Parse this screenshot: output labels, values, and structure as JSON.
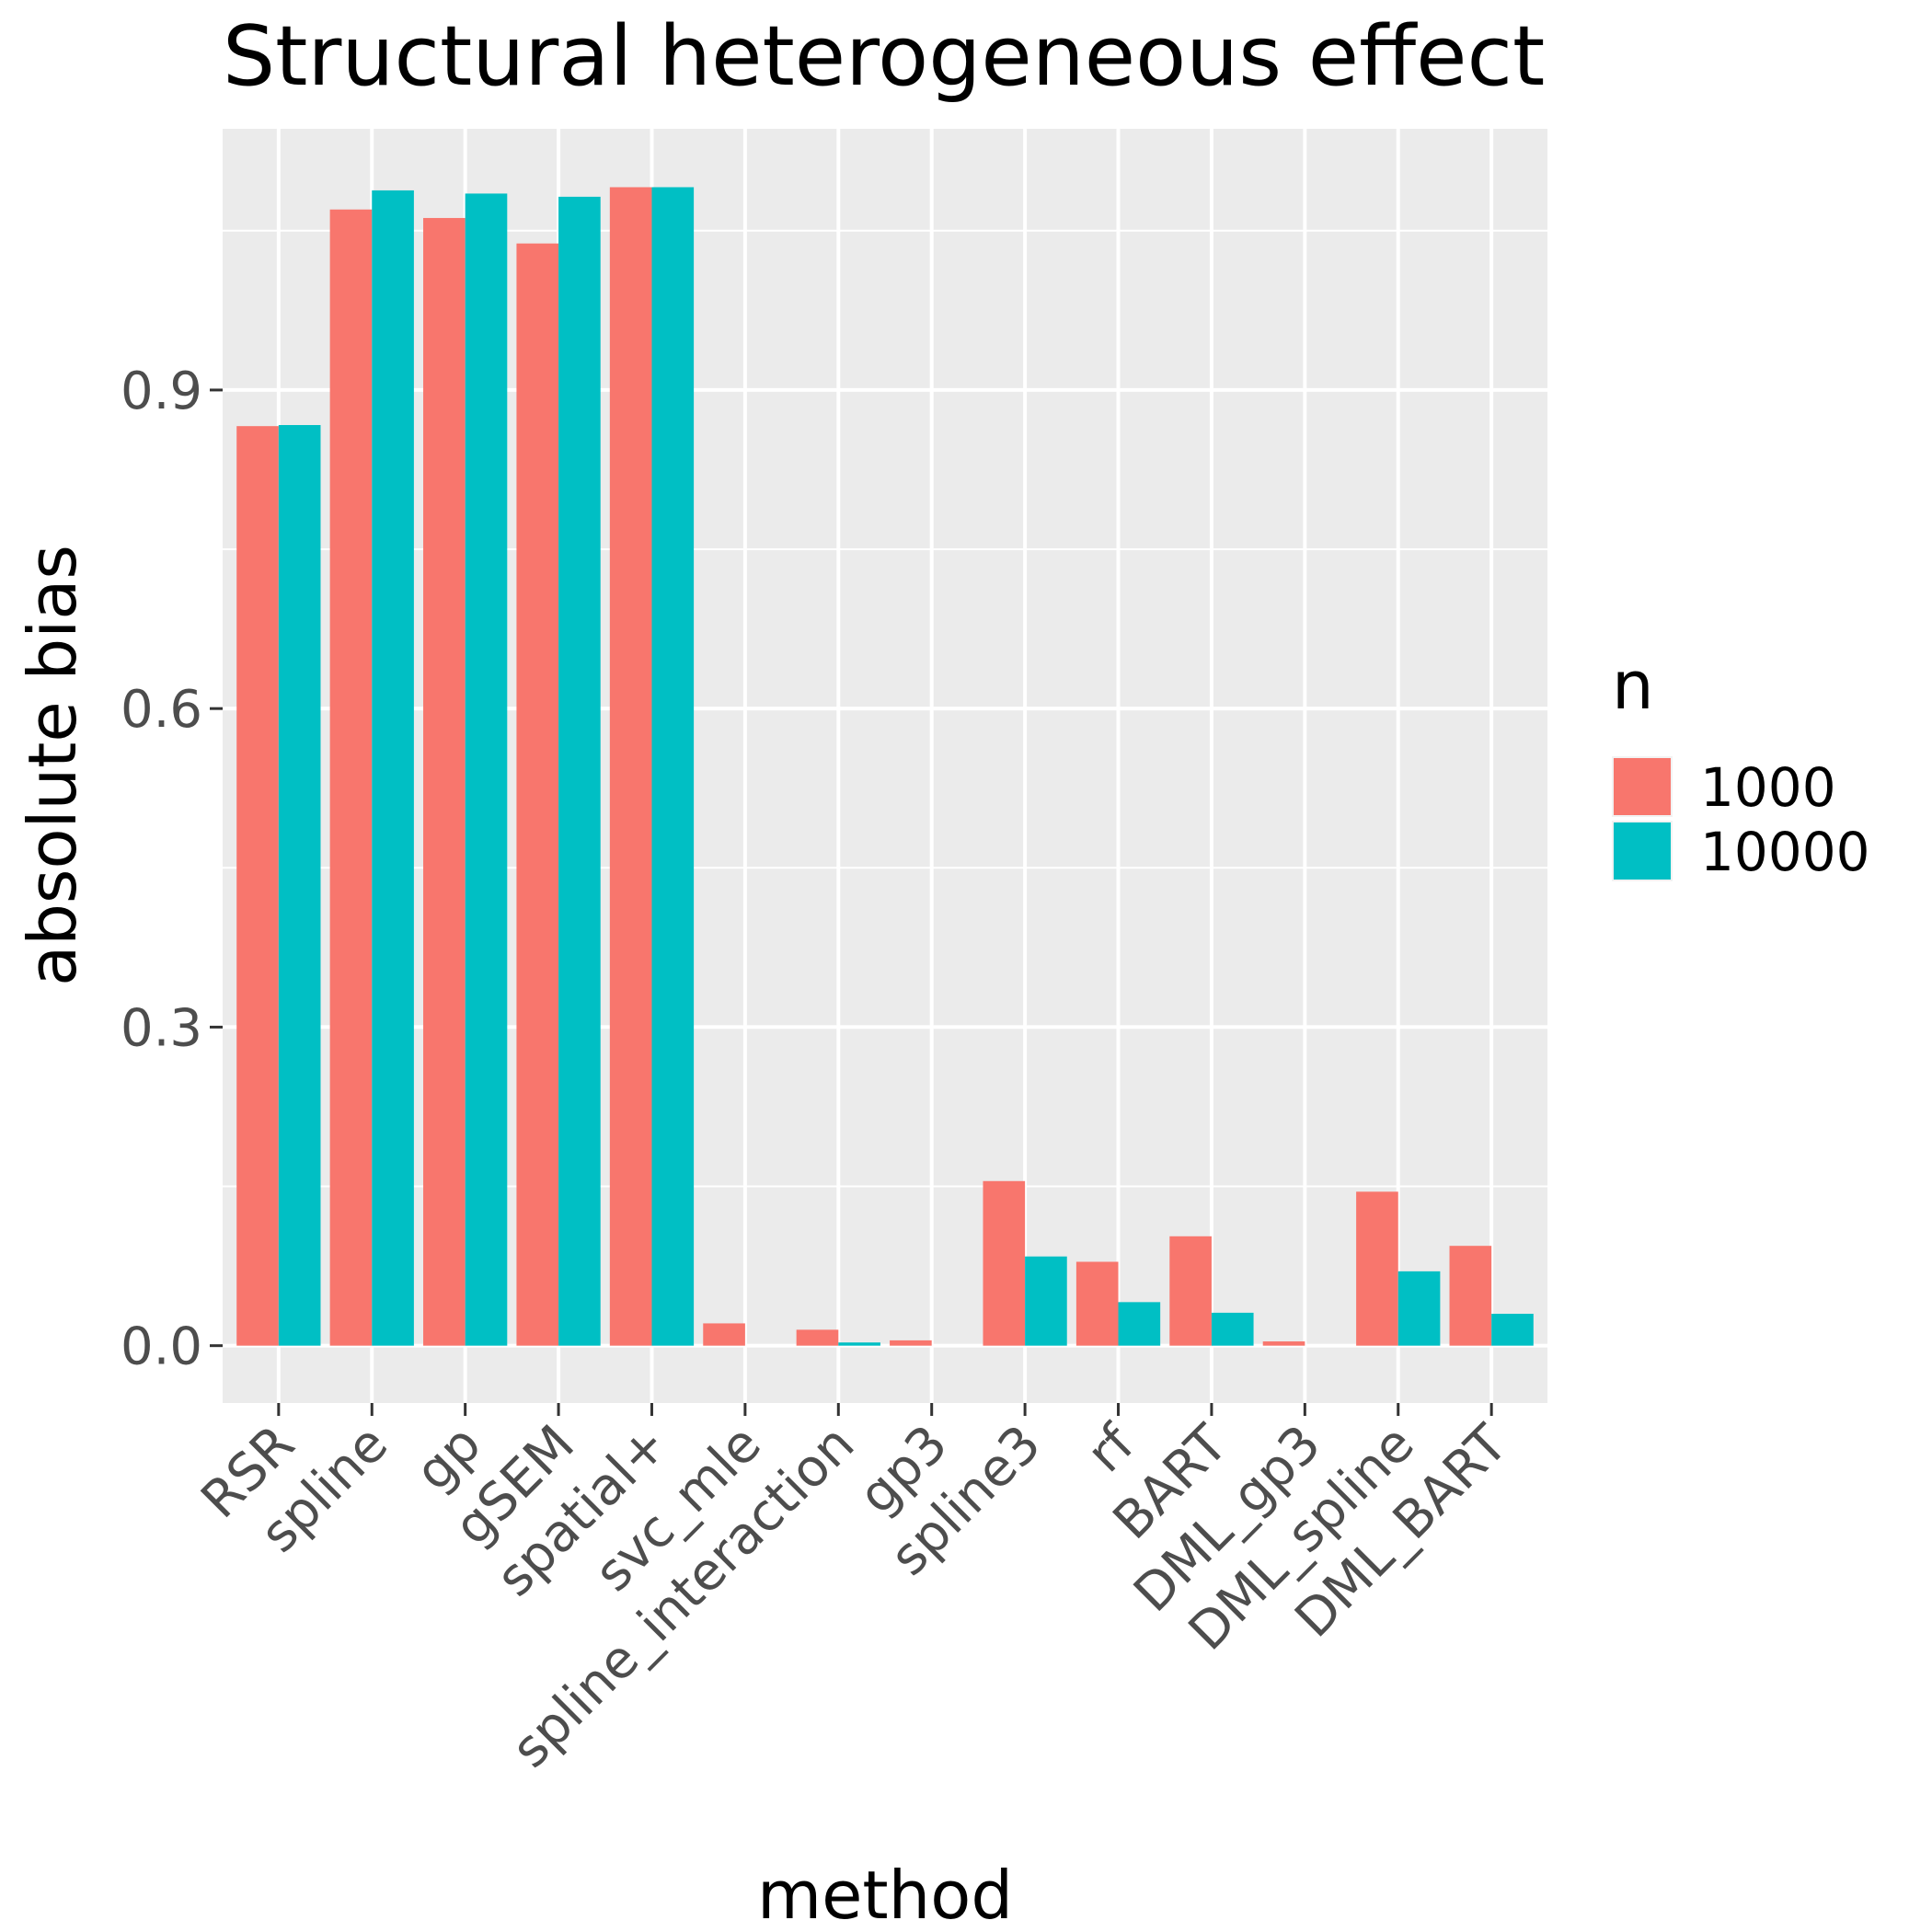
{
  "chart_data": {
    "type": "bar",
    "title": "Structural heterogeneous effect",
    "xlabel": "method",
    "ylabel": "absolute bias",
    "categories": [
      "RSR",
      "spline",
      "gp",
      "gSEM",
      "spatial+",
      "svc_mle",
      "spline_interaction",
      "gp3",
      "spline3",
      "rf",
      "BART",
      "DML_gp3",
      "DML_spline",
      "DML_BART"
    ],
    "series": [
      {
        "name": "1000",
        "color": "#F8766D",
        "values": [
          0.866,
          1.07,
          1.062,
          1.038,
          1.091,
          0.021,
          0.015,
          0.005,
          0.155,
          0.079,
          0.103,
          0.004,
          0.145,
          0.094
        ]
      },
      {
        "name": "10000",
        "color": "#00BFC4",
        "values": [
          0.867,
          1.088,
          1.085,
          1.082,
          1.091,
          0.0,
          0.003,
          0.0,
          0.084,
          0.041,
          0.031,
          0.0,
          0.07,
          0.03
        ]
      }
    ],
    "ylim": [
      -0.054,
      1.146
    ],
    "yticks": [
      0.0,
      0.3,
      0.6,
      0.9
    ],
    "ytick_labels": [
      "0.0",
      "0.3",
      "0.6",
      "0.9"
    ],
    "legend": {
      "title": "n",
      "position": "right"
    },
    "grid": true,
    "panel_background": "#EBEBEB"
  }
}
